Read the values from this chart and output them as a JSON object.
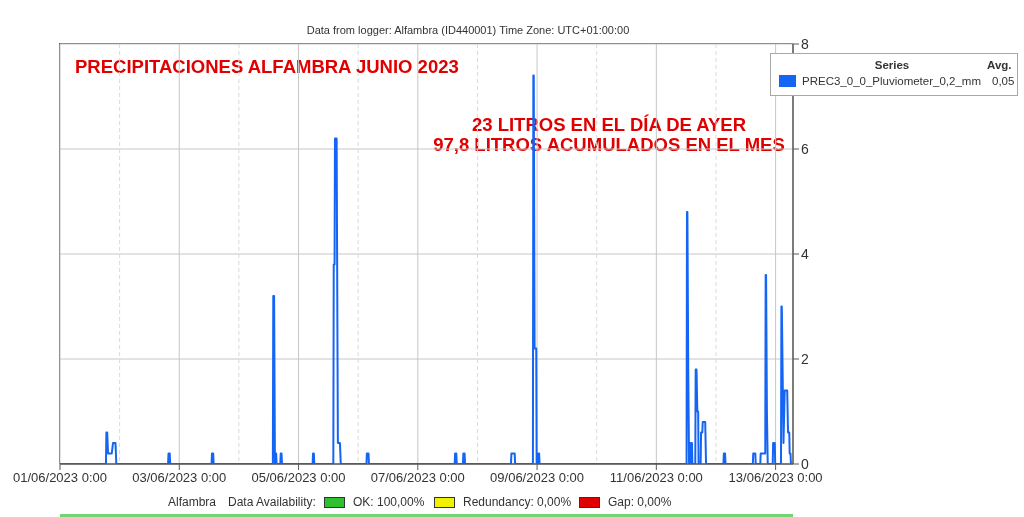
{
  "chart_data": {
    "type": "line",
    "title": "Data from logger: Alfambra (ID440001) Time Zone: UTC+01:00:00",
    "subtitle": "PRECIPITACIONES ALFAMBRA JUNIO 2023",
    "legend_title": "Series",
    "annotations": [
      "23 LITROS EN EL DÍA DE AYER",
      "97,8 LITROS ACUMULADOS EN EL MES",
      "Avg.",
      "0,05",
      "Alfambra",
      "Data Availability:",
      "OK: 100,00%",
      "Redundancy: 0,00%",
      "Gap: 0,00%"
    ],
    "x": [
      "2023-06-01T00:00",
      "2023-06-01T18:30",
      "2023-06-01T18:40",
      "2023-06-01T19:00",
      "2023-06-01T19:20",
      "2023-06-01T20:50",
      "2023-06-01T21:20",
      "2023-06-01T22:20",
      "2023-06-01T22:40",
      "2023-06-02T19:30",
      "2023-06-02T19:40",
      "2023-06-02T20:10",
      "2023-06-02T20:20",
      "2023-06-03T13:00",
      "2023-06-03T13:10",
      "2023-06-03T13:40",
      "2023-06-03T13:50",
      "2023-06-04T13:40",
      "2023-06-04T13:50",
      "2023-06-04T14:10",
      "2023-06-04T14:30",
      "2023-06-04T14:40",
      "2023-06-04T15:00",
      "2023-06-04T15:10",
      "2023-06-04T16:40",
      "2023-06-04T16:50",
      "2023-06-04T17:10",
      "2023-06-04T17:20",
      "2023-06-05T05:40",
      "2023-06-05T05:50",
      "2023-06-05T06:10",
      "2023-06-05T06:20",
      "2023-06-05T14:00",
      "2023-06-05T14:10",
      "2023-06-05T14:30",
      "2023-06-05T14:40",
      "2023-06-05T15:20",
      "2023-06-05T15:50",
      "2023-06-05T16:40",
      "2023-06-05T17:00",
      "2023-06-06T03:20",
      "2023-06-06T03:30",
      "2023-06-06T04:10",
      "2023-06-06T04:20",
      "2023-06-07T14:50",
      "2023-06-07T15:00",
      "2023-06-07T15:30",
      "2023-06-07T15:40",
      "2023-06-07T18:10",
      "2023-06-07T18:20",
      "2023-06-07T18:50",
      "2023-06-07T19:00",
      "2023-06-08T13:30",
      "2023-06-08T13:40",
      "2023-06-08T15:00",
      "2023-06-08T15:10",
      "2023-06-08T22:20",
      "2023-06-08T22:30",
      "2023-06-08T22:40",
      "2023-06-08T23:00",
      "2023-06-08T23:40",
      "2023-06-08T23:50",
      "2023-06-09T00:20",
      "2023-06-09T00:30",
      "2023-06-09T00:50",
      "2023-06-09T01:00",
      "2023-06-11T12:10",
      "2023-06-11T12:20",
      "2023-06-11T12:30",
      "2023-06-11T12:50",
      "2023-06-11T13:10",
      "2023-06-11T13:40",
      "2023-06-11T13:50",
      "2023-06-11T14:20",
      "2023-06-11T14:30",
      "2023-06-11T15:40",
      "2023-06-11T15:50",
      "2023-06-11T16:10",
      "2023-06-11T16:30",
      "2023-06-11T16:50",
      "2023-06-11T17:00",
      "2023-06-11T17:50",
      "2023-06-11T18:00",
      "2023-06-11T18:30",
      "2023-06-11T18:40",
      "2023-06-11T19:40",
      "2023-06-11T20:00",
      "2023-06-12T03:00",
      "2023-06-12T03:10",
      "2023-06-12T03:40",
      "2023-06-12T03:50",
      "2023-06-12T14:50",
      "2023-06-12T15:00",
      "2023-06-12T15:50",
      "2023-06-12T16:00",
      "2023-06-12T17:50",
      "2023-06-12T18:00",
      "2023-06-12T19:50",
      "2023-06-12T20:00",
      "2023-06-12T20:10",
      "2023-06-12T20:30",
      "2023-06-12T20:50",
      "2023-06-12T22:50",
      "2023-06-12T23:00",
      "2023-06-12T23:40",
      "2023-06-12T23:50",
      "2023-06-13T02:10",
      "2023-06-13T02:20",
      "2023-06-13T02:30",
      "2023-06-13T03:10",
      "2023-06-13T03:40",
      "2023-06-13T04:40",
      "2023-06-13T05:00",
      "2023-06-13T05:30",
      "2023-06-13T05:40",
      "2023-06-13T06:00",
      "2023-06-13T06:10",
      "2023-06-13T07:00"
    ],
    "series": [
      {
        "name": "PREC3_0_0_Pluviometer_0,2_mm",
        "color": "#1565f5",
        "values": [
          0,
          0,
          0.6,
          0.6,
          0.2,
          0.2,
          0.4,
          0.4,
          0,
          0,
          0.2,
          0.2,
          0,
          0,
          0.2,
          0.2,
          0,
          0,
          3.2,
          3.2,
          0,
          0.2,
          0.2,
          0,
          0,
          0.2,
          0.2,
          0,
          0,
          0.2,
          0.2,
          0,
          0,
          3.8,
          3.8,
          6.2,
          6.2,
          0.4,
          0.4,
          0,
          0,
          0.2,
          0.2,
          0,
          0,
          0.2,
          0.2,
          0,
          0,
          0.2,
          0.2,
          0,
          0,
          0.2,
          0.2,
          0,
          0,
          7.4,
          7.4,
          2.2,
          2.2,
          0,
          0,
          0.2,
          0.2,
          0,
          0,
          4.8,
          4.8,
          1.8,
          0,
          0,
          0.4,
          0.4,
          0,
          0,
          1.8,
          1.8,
          1,
          1,
          0,
          0,
          0.6,
          0.6,
          0.8,
          0.8,
          0,
          0,
          0.2,
          0.2,
          0,
          0,
          0.2,
          0.2,
          0,
          0,
          0.2,
          0.2,
          3.6,
          3.6,
          1,
          0,
          0,
          0.4,
          0.4,
          0,
          0,
          3,
          3,
          0.4,
          1.4,
          1.4,
          0.6,
          0.6,
          0.2,
          0.2,
          0,
          0
        ]
      }
    ],
    "xlim": [
      "2023-06-01T00:00",
      "2023-06-13T07:00"
    ],
    "xticks": [
      {
        "value": "2023-06-01T00:00",
        "label": "01/06/2023 0:00"
      },
      {
        "value": "2023-06-02T00:00",
        "label": null
      },
      {
        "value": "2023-06-03T00:00",
        "label": "03/06/2023 0:00"
      },
      {
        "value": "2023-06-04T00:00",
        "label": null
      },
      {
        "value": "2023-06-05T00:00",
        "label": "05/06/2023 0:00"
      },
      {
        "value": "2023-06-06T00:00",
        "label": null
      },
      {
        "value": "2023-06-07T00:00",
        "label": "07/06/2023 0:00"
      },
      {
        "value": "2023-06-08T00:00",
        "label": null
      },
      {
        "value": "2023-06-09T00:00",
        "label": "09/06/2023 0:00"
      },
      {
        "value": "2023-06-10T00:00",
        "label": null
      },
      {
        "value": "2023-06-11T00:00",
        "label": "11/06/2023 0:00"
      },
      {
        "value": "2023-06-12T00:00",
        "label": null
      },
      {
        "value": "2023-06-13T00:00",
        "label": "13/06/2023 0:00"
      }
    ],
    "ylim": [
      0,
      8
    ],
    "yticks": [
      0,
      2,
      4,
      6,
      8
    ],
    "grid": true,
    "legend": "top right"
  }
}
